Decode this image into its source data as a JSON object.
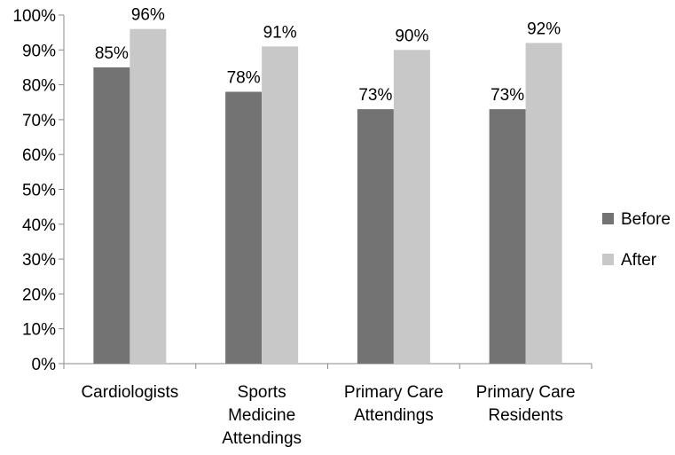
{
  "chart_data": {
    "type": "bar",
    "categories": [
      [
        "Cardiologists"
      ],
      [
        "Sports",
        "Medicine",
        "Attendings"
      ],
      [
        "Primary Care",
        "Attendings"
      ],
      [
        "Primary Care",
        "Residents"
      ]
    ],
    "series": [
      {
        "name": "Before",
        "values": [
          85,
          78,
          73,
          73
        ],
        "labels": [
          "85%",
          "78%",
          "73%",
          "73%"
        ],
        "color": "#737373"
      },
      {
        "name": "After",
        "values": [
          96,
          91,
          90,
          92
        ],
        "labels": [
          "96%",
          "91%",
          "90%",
          "92%"
        ],
        "color": "#c8c8c8"
      }
    ],
    "ylim": [
      0,
      100
    ],
    "yticks": [
      {
        "value": 0,
        "label": "0%"
      },
      {
        "value": 10,
        "label": "10%"
      },
      {
        "value": 20,
        "label": "20%"
      },
      {
        "value": 30,
        "label": "30%"
      },
      {
        "value": 40,
        "label": "40%"
      },
      {
        "value": 50,
        "label": "50%"
      },
      {
        "value": 60,
        "label": "60%"
      },
      {
        "value": 70,
        "label": "70%"
      },
      {
        "value": 80,
        "label": "80%"
      },
      {
        "value": 90,
        "label": "90%"
      },
      {
        "value": 100,
        "label": "100%"
      }
    ],
    "grid": false,
    "legend_position": "right",
    "title": "",
    "xlabel": "",
    "ylabel": ""
  }
}
